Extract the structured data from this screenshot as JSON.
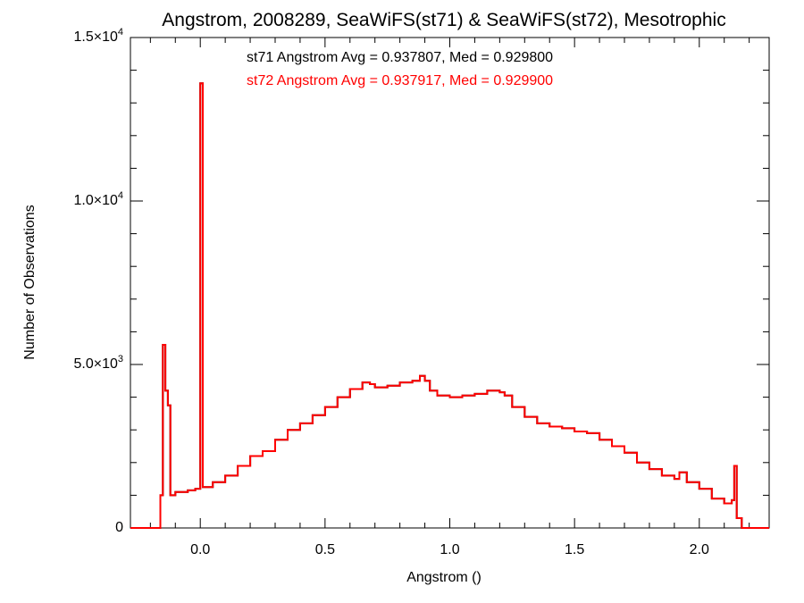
{
  "colors": {
    "st71": "#000000",
    "st72": "#ff0000",
    "axis": "#000000"
  },
  "chart_data": {
    "type": "line",
    "step": true,
    "title": "Angstrom, 2008289, SeaWiFS(st71) & SeaWiFS(st72), Mesotrophic",
    "xlabel": "Angstrom ()",
    "ylabel": "Number of Observations",
    "xlim": [
      -0.28,
      2.28
    ],
    "ylim": [
      0,
      15000
    ],
    "xticks": [
      {
        "v": 0.0,
        "label": "0.0"
      },
      {
        "v": 0.5,
        "label": "0.5"
      },
      {
        "v": 1.0,
        "label": "1.0"
      },
      {
        "v": 1.5,
        "label": "1.5"
      },
      {
        "v": 2.0,
        "label": "2.0"
      }
    ],
    "yticks": [
      {
        "v": 0,
        "mant": "0",
        "exp": ""
      },
      {
        "v": 5000,
        "mant": "5.0×10",
        "exp": "3"
      },
      {
        "v": 10000,
        "mant": "1.0×10",
        "exp": "4"
      },
      {
        "v": 15000,
        "mant": "1.5×10",
        "exp": "4"
      }
    ],
    "annotations": [
      {
        "series": "st71",
        "text": "st71 Angstrom Avg = 0.937807, Med = 0.929800"
      },
      {
        "series": "st72",
        "text": "st72 Angstrom Avg = 0.937917, Med = 0.929900"
      }
    ],
    "series": [
      {
        "key": "st71",
        "x": [
          -0.28,
          -0.16,
          -0.15,
          -0.14,
          -0.13,
          -0.12,
          -0.11,
          -0.1,
          -0.08,
          -0.05,
          -0.02,
          0.0,
          0.01,
          0.05,
          0.1,
          0.15,
          0.2,
          0.25,
          0.3,
          0.35,
          0.4,
          0.45,
          0.5,
          0.55,
          0.6,
          0.65,
          0.68,
          0.7,
          0.75,
          0.8,
          0.85,
          0.88,
          0.9,
          0.92,
          0.95,
          1.0,
          1.05,
          1.1,
          1.15,
          1.2,
          1.22,
          1.25,
          1.3,
          1.35,
          1.4,
          1.45,
          1.5,
          1.55,
          1.6,
          1.65,
          1.7,
          1.75,
          1.8,
          1.85,
          1.9,
          1.92,
          1.95,
          2.0,
          2.05,
          2.1,
          2.13,
          2.14,
          2.15,
          2.17,
          2.28
        ],
        "y": [
          0,
          1000,
          5600,
          4200,
          3750,
          1000,
          1000,
          1100,
          1100,
          1150,
          1200,
          13600,
          1250,
          1400,
          1600,
          1900,
          2200,
          2350,
          2700,
          3000,
          3200,
          3450,
          3700,
          4000,
          4250,
          4450,
          4400,
          4300,
          4350,
          4450,
          4500,
          4650,
          4500,
          4200,
          4050,
          4000,
          4050,
          4100,
          4200,
          4150,
          4050,
          3700,
          3400,
          3200,
          3100,
          3050,
          2950,
          2900,
          2700,
          2500,
          2300,
          2000,
          1800,
          1600,
          1500,
          1700,
          1400,
          1200,
          900,
          750,
          850,
          1900,
          300,
          0,
          0
        ]
      },
      {
        "key": "st72",
        "x": [
          -0.28,
          -0.16,
          -0.15,
          -0.14,
          -0.13,
          -0.12,
          -0.11,
          -0.1,
          -0.08,
          -0.05,
          -0.02,
          0.0,
          0.01,
          0.05,
          0.1,
          0.15,
          0.2,
          0.25,
          0.3,
          0.35,
          0.4,
          0.45,
          0.5,
          0.55,
          0.6,
          0.65,
          0.68,
          0.7,
          0.75,
          0.8,
          0.85,
          0.88,
          0.9,
          0.92,
          0.95,
          1.0,
          1.05,
          1.1,
          1.15,
          1.2,
          1.22,
          1.25,
          1.3,
          1.35,
          1.4,
          1.45,
          1.5,
          1.55,
          1.6,
          1.65,
          1.7,
          1.75,
          1.8,
          1.85,
          1.9,
          1.92,
          1.95,
          2.0,
          2.05,
          2.1,
          2.13,
          2.14,
          2.15,
          2.17,
          2.28
        ],
        "y": [
          0,
          1000,
          5600,
          4200,
          3750,
          1000,
          1000,
          1100,
          1100,
          1150,
          1200,
          13600,
          1250,
          1400,
          1600,
          1900,
          2200,
          2350,
          2700,
          3000,
          3200,
          3450,
          3700,
          4000,
          4250,
          4450,
          4400,
          4300,
          4350,
          4450,
          4500,
          4650,
          4500,
          4200,
          4050,
          4000,
          4050,
          4100,
          4200,
          4150,
          4050,
          3700,
          3400,
          3200,
          3100,
          3050,
          2950,
          2900,
          2700,
          2500,
          2300,
          2000,
          1800,
          1600,
          1500,
          1700,
          1400,
          1200,
          900,
          750,
          850,
          1900,
          300,
          0,
          0
        ]
      }
    ]
  }
}
